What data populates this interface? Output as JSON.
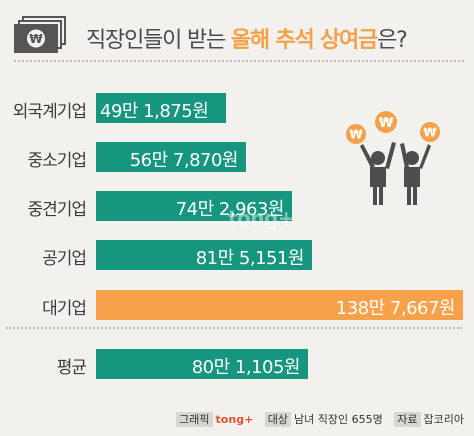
{
  "header": {
    "title_main": "직장인들이 받는 ",
    "title_accent": "올해 추석 상여금",
    "title_end": "은?",
    "icon": "money-icon"
  },
  "colors": {
    "bar": "#16957f",
    "highlight": "#f7a24a",
    "accent": "#f4a14a",
    "background": "#f3f1ee"
  },
  "watermark": "tong+",
  "chart_data": {
    "type": "bar",
    "orientation": "horizontal",
    "categories": [
      "외국계기업",
      "중소기업",
      "중견기업",
      "공기업",
      "대기업",
      "평균"
    ],
    "values": [
      491875,
      567870,
      742963,
      815151,
      1387667,
      801105
    ],
    "value_labels": [
      "49만 1,875원",
      "56만 7,870원",
      "74만 2,963원",
      "81만 5,151원",
      "138만 7,667원",
      "80만 1,105원"
    ],
    "highlight": "대기업",
    "xlim": [
      0,
      1387667
    ]
  },
  "footer": {
    "graphic_tag": "그래픽",
    "graphic_value": "tong+",
    "target_tag": "대상",
    "target_value": "남녀 직장인 655명",
    "source_tag": "자료",
    "source_value": "잡코리아"
  }
}
